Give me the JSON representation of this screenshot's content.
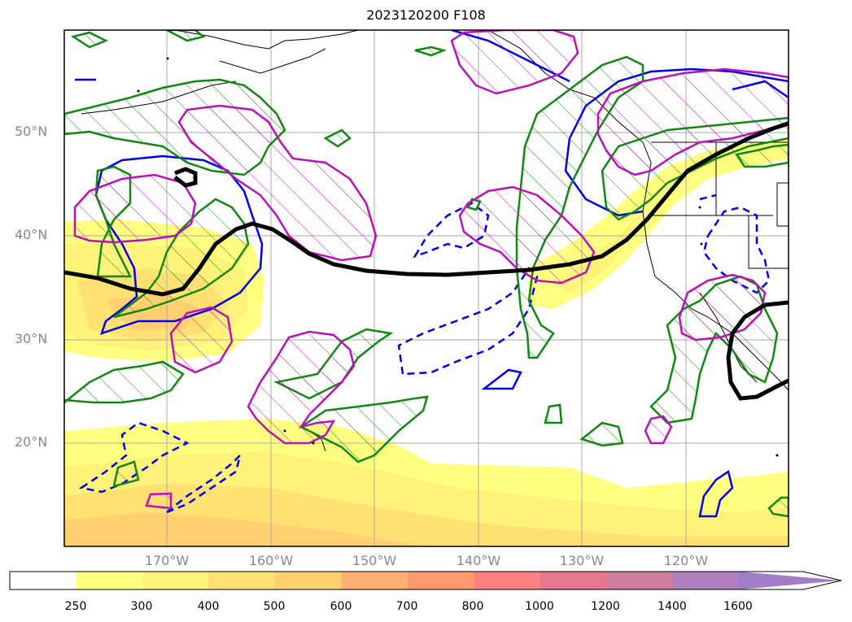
{
  "title": "2023120200 F108",
  "map": {
    "lat_labels": [
      "50°N",
      "40°N",
      "30°N",
      "20°N"
    ],
    "lon_labels": [
      "170°W",
      "160°W",
      "150°W",
      "140°W",
      "130°W",
      "120°W"
    ],
    "colors": {
      "jet_contour": "#000000",
      "green_hatch": "#118811",
      "magenta_hatch": "#bb11bb",
      "blue_solid": "#0000ee",
      "blue_dashed": "#0000ee",
      "grid": "#aaaaaa",
      "coastline": "#000000"
    }
  },
  "colorbar": {
    "ticks": [
      "250",
      "300",
      "400",
      "500",
      "600",
      "700",
      "800",
      "1000",
      "1200",
      "1400",
      "1600"
    ],
    "colors": [
      "#ffffff",
      "#ffff80",
      "#fff27a",
      "#ffe073",
      "#ffcf70",
      "#ffb070",
      "#ff9a70",
      "#ff8080",
      "#e87890",
      "#d07ea0",
      "#b080c0",
      "#a07ec8"
    ],
    "extend": "max"
  }
}
